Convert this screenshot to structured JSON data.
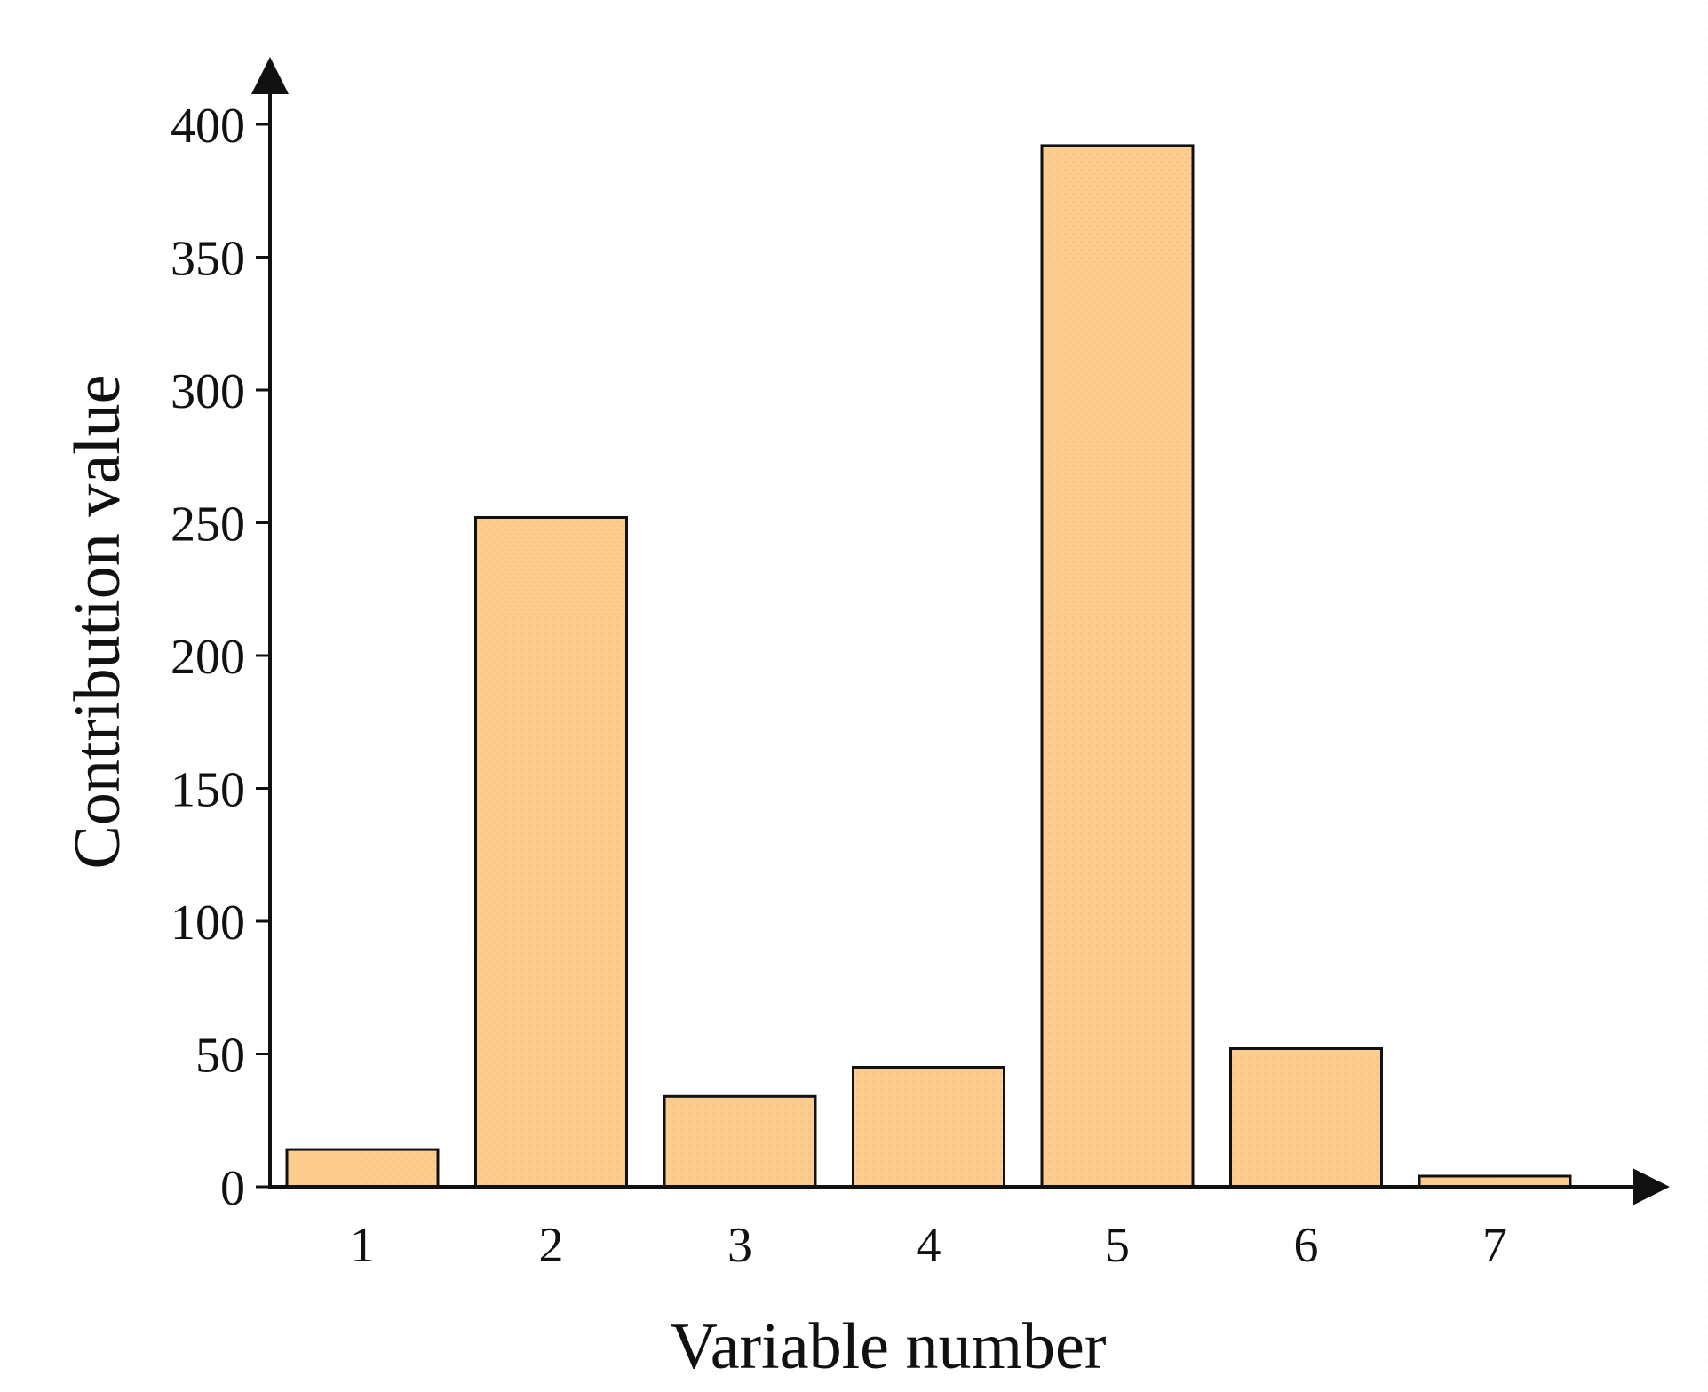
{
  "chart_data": {
    "type": "bar",
    "title": "",
    "xlabel": "Variable number",
    "ylabel": "Contribution value",
    "categories": [
      "1",
      "2",
      "3",
      "4",
      "5",
      "6",
      "7"
    ],
    "values": [
      14,
      252,
      34,
      45,
      392,
      52,
      4
    ],
    "ylim": [
      0,
      400
    ],
    "yticks": [
      "0",
      "50",
      "100",
      "150",
      "200",
      "250",
      "300",
      "350",
      "400"
    ],
    "grid": false,
    "legend": "none",
    "bar_color": "#FDCC8F",
    "bar_edge_color": "#111111",
    "bar_texture_color": "#F2A86A"
  }
}
